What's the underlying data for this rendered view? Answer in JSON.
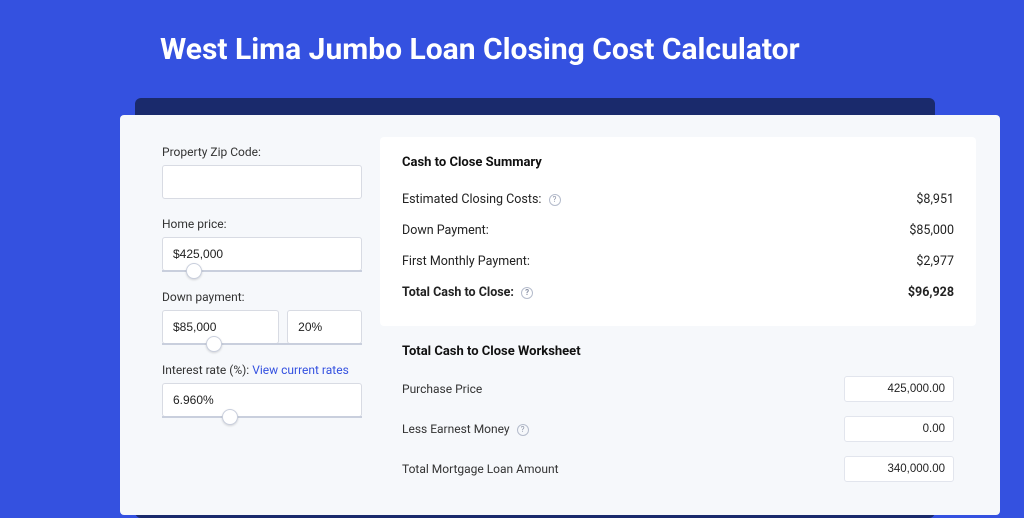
{
  "colors": {
    "page_bg": "#3451e0",
    "card_bg": "#ffffff",
    "panel_bg": "#f6f8fb",
    "accent_dark": "#1a2a6c",
    "text": "#222222",
    "label": "#333333",
    "border": "#d8dbe3",
    "link": "#3451e0"
  },
  "title": "West Lima Jumbo Loan Closing Cost Calculator",
  "inputs": {
    "zip_label": "Property Zip Code:",
    "zip_value": "",
    "home_price_label": "Home price:",
    "home_price_value": "$425,000",
    "home_price_slider_pct": 12,
    "down_payment_label": "Down payment:",
    "down_payment_value": "$85,000",
    "down_payment_pct": "20%",
    "down_payment_slider_pct": 22,
    "rate_label": "Interest rate (%):",
    "rate_link": "View current rates",
    "rate_value": "6.960%",
    "rate_slider_pct": 30
  },
  "summary": {
    "title": "Cash to Close Summary",
    "rows": [
      {
        "label": "Estimated Closing Costs:",
        "help": true,
        "value": "$8,951"
      },
      {
        "label": "Down Payment:",
        "help": false,
        "value": "$85,000"
      },
      {
        "label": "First Monthly Payment:",
        "help": false,
        "value": "$2,977"
      }
    ],
    "total_label": "Total Cash to Close:",
    "total_value": "$96,928"
  },
  "worksheet": {
    "title": "Total Cash to Close Worksheet",
    "rows": [
      {
        "label": "Purchase Price",
        "help": false,
        "value": "425,000.00"
      },
      {
        "label": "Less Earnest Money",
        "help": true,
        "value": "0.00"
      },
      {
        "label": "Total Mortgage Loan Amount",
        "help": false,
        "value": "340,000.00"
      }
    ]
  }
}
